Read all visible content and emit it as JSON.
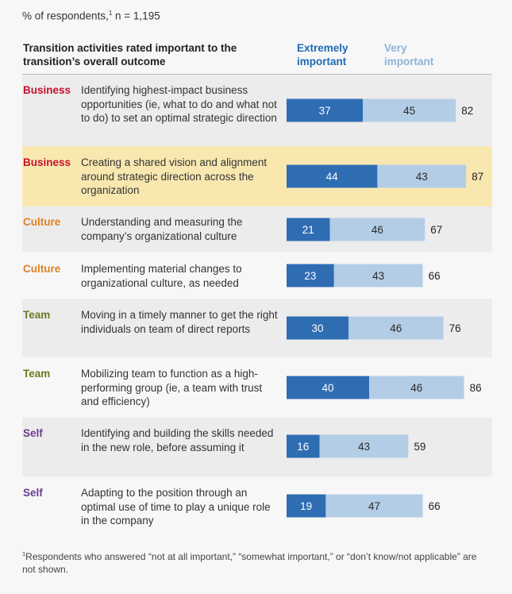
{
  "meta": {
    "base_label": "% of respondents,",
    "footnote_mark": "1",
    "sample_label": " n = 1,195"
  },
  "header": {
    "title": "Transition activities rated important to the transition’s overall outcome",
    "legend_extremely": "Extremely important",
    "legend_very": "Very important"
  },
  "colors": {
    "extremely": "#2f6db3",
    "very": "#b3cde6",
    "business": "#c8102e",
    "culture": "#e0801f",
    "team": "#6b7a1f",
    "self": "#6a3d8f"
  },
  "rows": [
    {
      "category": "Business",
      "description": "Identifying highest-impact business opportunities (ie, what to do and what not to do) to set an optimal strategic direction"
    },
    {
      "category": "Business",
      "description": "Creating a shared vision and alignment around strategic direction across the organization"
    },
    {
      "category": "Culture",
      "description": "Understanding and measuring the company’s organizational culture"
    },
    {
      "category": "Culture",
      "description": "Implementing material changes to organizational culture, as needed"
    },
    {
      "category": "Team",
      "description": "Moving in a timely manner to get the right individuals on team of direct reports"
    },
    {
      "category": "Team",
      "description": "Mobilizing team to function as a high-performing group (ie, a team with trust and efficiency)"
    },
    {
      "category": "Self",
      "description": "Identifying and building the skills needed in the new role, before assuming it"
    },
    {
      "category": "Self",
      "description": "Adapting to the position through an optimal use of time to play a unique role in the company"
    }
  ],
  "chart_data": {
    "type": "bar",
    "orientation": "horizontal",
    "stacked": true,
    "title": "Transition activities rated important to the transition’s overall outcome",
    "unit": "% of respondents",
    "categories": [
      "Identifying highest-impact business opportunities (ie, what to do and what not to do) to set an optimal strategic direction",
      "Creating a shared vision and alignment around strategic direction across the organization",
      "Understanding and measuring the company’s organizational culture",
      "Implementing material changes to organizational culture, as needed",
      "Moving in a timely manner to get the right individuals on team of direct reports",
      "Mobilizing team to function as a high-performing group (ie, a team with trust and efficiency)",
      "Identifying and building the skills needed in the new role, before assuming it",
      "Adapting to the position through an optimal use of time to play a unique role in the company"
    ],
    "groups": [
      "Business",
      "Business",
      "Culture",
      "Culture",
      "Team",
      "Team",
      "Self",
      "Self"
    ],
    "series": [
      {
        "name": "Extremely important",
        "values": [
          37,
          44,
          21,
          23,
          30,
          40,
          16,
          19
        ]
      },
      {
        "name": "Very important",
        "values": [
          45,
          43,
          46,
          43,
          46,
          46,
          43,
          47
        ]
      }
    ],
    "totals": [
      82,
      87,
      67,
      66,
      76,
      86,
      59,
      66
    ],
    "highlighted_row": 1,
    "xlim": [
      0,
      100
    ]
  },
  "footnote": {
    "mark": "1",
    "text": "Respondents who answered “not at all important,” “somewhat important,” or “don’t know/not applicable” are not shown."
  }
}
